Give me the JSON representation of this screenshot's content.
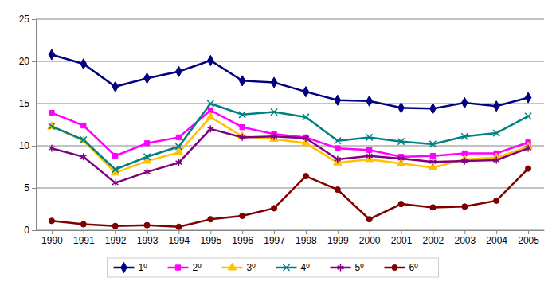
{
  "chart_data": {
    "type": "line",
    "categories": [
      "1990",
      "1991",
      "1992",
      "1993",
      "1994",
      "1995",
      "1996",
      "1997",
      "1998",
      "1999",
      "2000",
      "2001",
      "2002",
      "2003",
      "2004",
      "2005"
    ],
    "series": [
      {
        "name": "1º",
        "color": "#000080",
        "marker": "diamond",
        "values": [
          20.8,
          19.7,
          17.0,
          18.0,
          18.8,
          20.1,
          17.7,
          17.5,
          16.4,
          15.4,
          15.3,
          14.5,
          14.4,
          15.1,
          14.7,
          15.7
        ]
      },
      {
        "name": "2º",
        "color": "#ff00ff",
        "marker": "square",
        "values": [
          13.9,
          12.4,
          8.8,
          10.3,
          11.0,
          14.2,
          12.2,
          11.4,
          11.0,
          9.7,
          9.5,
          8.7,
          8.8,
          9.1,
          9.1,
          10.4
        ]
      },
      {
        "name": "3º",
        "color": "#ffc000",
        "marker": "triangle",
        "values": [
          12.3,
          10.6,
          6.8,
          8.2,
          9.2,
          13.4,
          11.1,
          10.8,
          10.3,
          8.0,
          8.4,
          7.9,
          7.4,
          8.4,
          8.6,
          9.9
        ]
      },
      {
        "name": "4º",
        "color": "#008080",
        "marker": "x",
        "values": [
          12.3,
          10.7,
          7.2,
          8.7,
          9.9,
          15.0,
          13.7,
          14.0,
          13.4,
          10.6,
          11.0,
          10.5,
          10.2,
          11.1,
          11.5,
          13.5
        ]
      },
      {
        "name": "5º",
        "color": "#800080",
        "marker": "asterisk",
        "values": [
          9.7,
          8.7,
          5.6,
          6.9,
          8.0,
          12.0,
          11.0,
          11.1,
          10.9,
          8.4,
          8.8,
          8.5,
          8.1,
          8.2,
          8.3,
          9.7
        ]
      },
      {
        "name": "6º",
        "color": "#800000",
        "marker": "circle",
        "values": [
          1.1,
          0.7,
          0.5,
          0.6,
          0.4,
          1.3,
          1.7,
          2.6,
          6.4,
          4.8,
          1.3,
          3.1,
          2.7,
          2.8,
          3.5,
          7.3
        ]
      }
    ],
    "ylim": [
      0,
      25
    ],
    "yticks": [
      0,
      5,
      10,
      15,
      20,
      25
    ],
    "grid": true,
    "legend": "bottom"
  }
}
